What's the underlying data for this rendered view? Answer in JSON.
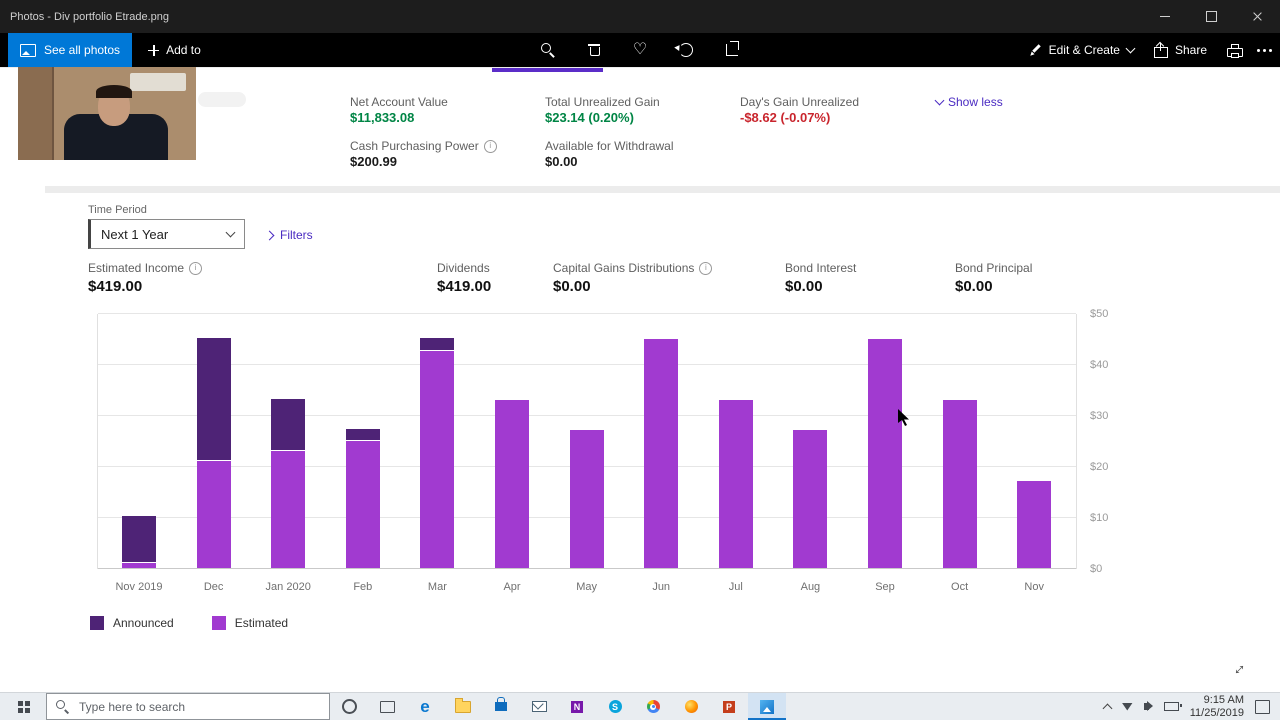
{
  "window": {
    "title": "Photos - Div portfolio Etrade.png"
  },
  "toolbar": {
    "see_all_photos": "See all photos",
    "add_to": "Add to",
    "edit_create": "Edit & Create",
    "share": "Share",
    "icons": [
      "zoom-icon",
      "delete-icon",
      "favorite-icon",
      "rotate-icon",
      "crop-icon",
      "edit-pen-icon",
      "share-icon",
      "print-icon",
      "more-icon"
    ]
  },
  "account": {
    "net_account_value_label": "Net Account Value",
    "net_account_value": "$11,833.08",
    "total_unrealized_gain_label": "Total Unrealized Gain",
    "total_unrealized_gain": "$23.14  (0.20%)",
    "days_gain_label": "Day's Gain Unrealized",
    "days_gain": "-$8.62  (-0.07%)",
    "show_less": "Show less",
    "cash_purchasing_power_label": "Cash Purchasing Power",
    "cash_purchasing_power": "$200.99",
    "available_withdrawal_label": "Available for Withdrawal",
    "available_withdrawal": "$0.00"
  },
  "filters": {
    "time_period_label": "Time Period",
    "time_period_value": "Next 1 Year",
    "filters_label": "Filters"
  },
  "income": {
    "estimated_income_label": "Estimated Income",
    "estimated_income": "$419.00",
    "dividends_label": "Dividends",
    "dividends": "$419.00",
    "capital_gains_label": "Capital Gains Distributions",
    "capital_gains": "$0.00",
    "bond_interest_label": "Bond Interest",
    "bond_interest": "$0.00",
    "bond_principal_label": "Bond Principal",
    "bond_principal": "$0.00"
  },
  "chart_data": {
    "type": "bar",
    "stacked": true,
    "title": "",
    "xlabel": "",
    "ylabel": "",
    "categories": [
      "Nov 2019",
      "Dec",
      "Jan 2020",
      "Feb",
      "Mar",
      "Apr",
      "May",
      "Jun",
      "Jul",
      "Aug",
      "Sep",
      "Oct",
      "Nov"
    ],
    "series": [
      {
        "name": "Announced",
        "color": "#4e2376",
        "values": [
          9,
          24,
          10,
          2,
          2.5,
          0,
          0,
          0,
          0,
          0,
          0,
          0,
          0
        ]
      },
      {
        "name": "Estimated",
        "color": "#a13ad0",
        "values": [
          1,
          21,
          23,
          25,
          42.5,
          33,
          27,
          45,
          33,
          27,
          45,
          33,
          17
        ]
      }
    ],
    "ylim": [
      0,
      50
    ],
    "yticks": [
      0,
      10,
      20,
      30,
      40,
      50
    ],
    "ytick_prefix": "$",
    "grid": true,
    "legend_position": "bottom-left",
    "y_axis_side": "right"
  },
  "taskbar": {
    "search_placeholder": "Type here to search",
    "time": "9:15 AM",
    "date": "11/25/2019",
    "apps": [
      {
        "name": "cortana"
      },
      {
        "name": "task-view"
      },
      {
        "name": "edge"
      },
      {
        "name": "file-explorer"
      },
      {
        "name": "store"
      },
      {
        "name": "mail"
      },
      {
        "name": "onenote"
      },
      {
        "name": "skype"
      },
      {
        "name": "chrome"
      },
      {
        "name": "firefox"
      },
      {
        "name": "powerpoint"
      },
      {
        "name": "photos",
        "active": true
      }
    ]
  },
  "colors": {
    "positive_green": "#008545",
    "negative_red": "#c9252d",
    "link_purple": "#4a2bc2",
    "tab_underline_purple": "#5b2dc8",
    "announced_purple": "#4e2376",
    "estimated_purple": "#a13ad0",
    "accent_blue": "#0078d7"
  }
}
